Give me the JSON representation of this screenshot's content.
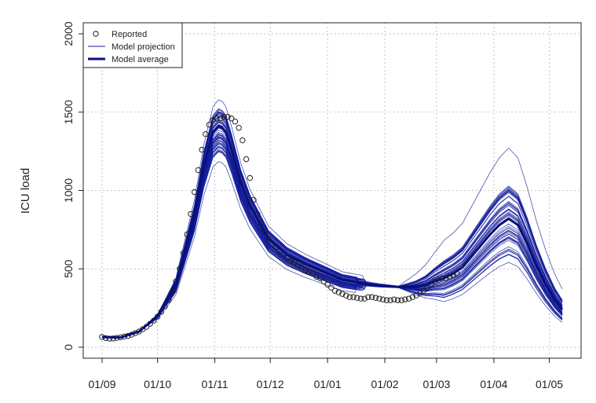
{
  "chart_data": {
    "type": "line",
    "title": "",
    "xlabel": "",
    "ylabel": "ICU load",
    "xlim": [
      0,
      249
    ],
    "ylim": [
      0,
      2000
    ],
    "yticks": [
      0,
      500,
      1000,
      1500,
      2000
    ],
    "x_ticks": [
      {
        "day": 0,
        "label": "01/09"
      },
      {
        "day": 30,
        "label": "01/10"
      },
      {
        "day": 61,
        "label": "01/11"
      },
      {
        "day": 91,
        "label": "01/12"
      },
      {
        "day": 122,
        "label": "01/01"
      },
      {
        "day": 153,
        "label": "01/02"
      },
      {
        "day": 181,
        "label": "01/03"
      },
      {
        "day": 212,
        "label": "01/04"
      },
      {
        "day": 242,
        "label": "01/05"
      }
    ],
    "x_unit": "days from 01/09",
    "grid": true,
    "legend": {
      "position": "top-left",
      "entries": [
        {
          "label": "Reported",
          "style": "open-circle"
        },
        {
          "label": "Model projection",
          "style": "thin-line"
        },
        {
          "label": "Model average",
          "style": "thick-line"
        }
      ]
    },
    "colors": {
      "projection": "#101a9a",
      "average": "#0a0f78",
      "reported": "#222222",
      "grid": "#b5b5b5"
    },
    "model_average": {
      "name": "Model average",
      "x": [
        0,
        10,
        20,
        30,
        40,
        50,
        55,
        60,
        63,
        65,
        67,
        70,
        75,
        80,
        90,
        100,
        110,
        120,
        130,
        140,
        150,
        160,
        170,
        175,
        180,
        185,
        190,
        195,
        200,
        205,
        210,
        215,
        220,
        225,
        230,
        235,
        240,
        245,
        249
      ],
      "y": [
        65,
        62,
        100,
        200,
        400,
        840,
        1150,
        1370,
        1410,
        1400,
        1370,
        1260,
        1050,
        900,
        690,
        590,
        530,
        480,
        430,
        410,
        395,
        385,
        385,
        395,
        420,
        440,
        470,
        510,
        580,
        650,
        720,
        780,
        820,
        780,
        660,
        520,
        400,
        300,
        240
      ]
    },
    "model_projections": {
      "name": "Model projection",
      "count": 60,
      "peak1_range": [
        1170,
        1580
      ],
      "peak2_range": [
        530,
        1270
      ],
      "end_range": [
        140,
        400
      ]
    },
    "reported": {
      "name": "Reported",
      "x": [
        0,
        2,
        4,
        6,
        8,
        10,
        12,
        14,
        16,
        18,
        20,
        22,
        24,
        26,
        28,
        30,
        32,
        34,
        36,
        38,
        40,
        42,
        44,
        46,
        48,
        50,
        52,
        54,
        56,
        58,
        60,
        62,
        64,
        66,
        68,
        70,
        72,
        74,
        76,
        78,
        80,
        82,
        84,
        86,
        88,
        90,
        92,
        94,
        96,
        98,
        100,
        102,
        104,
        106,
        108,
        110,
        112,
        114,
        116,
        118,
        120,
        122,
        124,
        126,
        128,
        130,
        132,
        134,
        136,
        138,
        140,
        142,
        144,
        146,
        148,
        150,
        152,
        154,
        156,
        158,
        160,
        162,
        164,
        166,
        168,
        170,
        172,
        174,
        176,
        178,
        180,
        182,
        184,
        186,
        188,
        190,
        192
      ],
      "y": [
        65,
        58,
        55,
        56,
        60,
        63,
        68,
        72,
        80,
        90,
        100,
        115,
        130,
        150,
        170,
        195,
        225,
        260,
        300,
        350,
        420,
        500,
        600,
        720,
        850,
        990,
        1130,
        1260,
        1360,
        1420,
        1450,
        1460,
        1460,
        1470,
        1470,
        1460,
        1440,
        1400,
        1320,
        1200,
        1080,
        940,
        850,
        790,
        740,
        690,
        660,
        640,
        610,
        590,
        570,
        550,
        540,
        520,
        510,
        490,
        480,
        470,
        450,
        440,
        420,
        400,
        380,
        360,
        350,
        340,
        330,
        320,
        320,
        315,
        310,
        310,
        320,
        320,
        315,
        310,
        305,
        300,
        300,
        305,
        300,
        300,
        305,
        310,
        320,
        330,
        345,
        360,
        380,
        400,
        420,
        430,
        440,
        440,
        450,
        460,
        470
      ]
    }
  }
}
